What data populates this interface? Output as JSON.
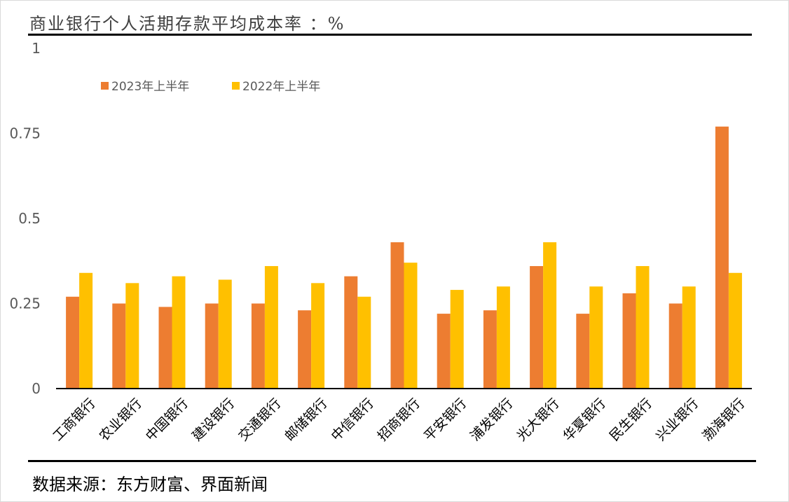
{
  "title": "商业银行个人活期存款平均成本率 ：%",
  "source": "数据来源：东方财富、界面新闻",
  "chart_data": {
    "type": "bar",
    "categories": [
      "工商银行",
      "农业银行",
      "中国银行",
      "建设银行",
      "交通银行",
      "邮储银行",
      "中信银行",
      "招商银行",
      "平安银行",
      "浦发银行",
      "光大银行",
      "华夏银行",
      "民生银行",
      "兴业银行",
      "渤海银行"
    ],
    "series": [
      {
        "name": "2023年上半年",
        "color": "#ED7D31",
        "values": [
          0.27,
          0.25,
          0.24,
          0.25,
          0.25,
          0.23,
          0.33,
          0.43,
          0.22,
          0.23,
          0.36,
          0.22,
          0.28,
          0.25,
          0.77
        ]
      },
      {
        "name": "2022年上半年",
        "color": "#FFC000",
        "values": [
          0.34,
          0.31,
          0.33,
          0.32,
          0.36,
          0.31,
          0.27,
          0.37,
          0.29,
          0.3,
          0.43,
          0.3,
          0.36,
          0.3,
          0.34
        ]
      }
    ],
    "yticks": [
      "0",
      "0.25",
      "0.5",
      "0.75",
      "1"
    ],
    "ylim": [
      0,
      1
    ],
    "grid": false,
    "legend_position": "top-left"
  }
}
